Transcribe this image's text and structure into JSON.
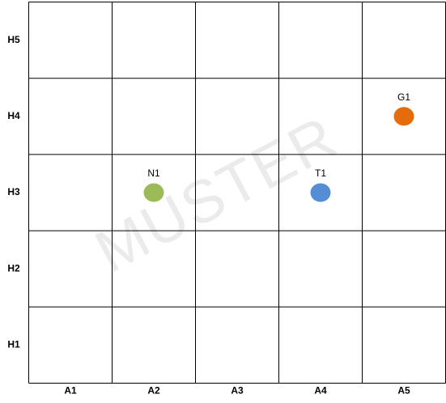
{
  "chart_data": {
    "type": "scatter",
    "watermark": "MUSTER",
    "x_categories": [
      "A1",
      "A2",
      "A3",
      "A4",
      "A5"
    ],
    "y_categories": [
      "H1",
      "H2",
      "H3",
      "H4",
      "H5"
    ],
    "points": [
      {
        "label": "N1",
        "x": "A2",
        "y": "H3",
        "color": "#9bbb59"
      },
      {
        "label": "T1",
        "x": "A4",
        "y": "H3",
        "color": "#558ed5"
      },
      {
        "label": "G1",
        "x": "A5",
        "y": "H4",
        "color": "#e46c0a"
      }
    ],
    "grid": true
  }
}
